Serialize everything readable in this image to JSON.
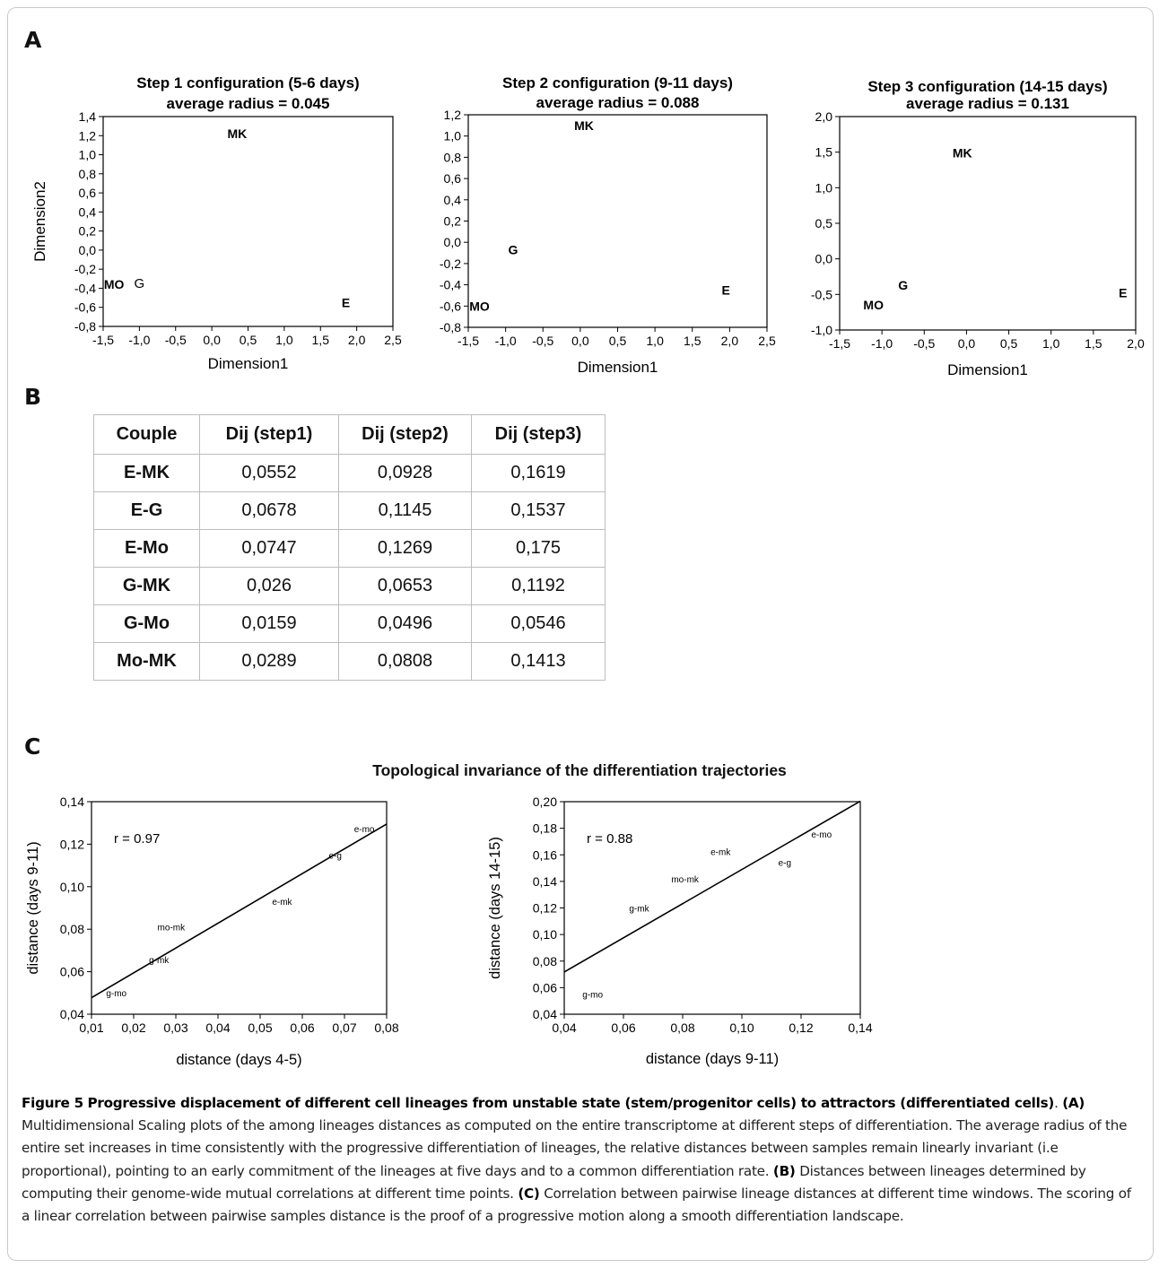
{
  "panels": {
    "a": "A",
    "b": "B",
    "c": "C"
  },
  "chart_data": [
    {
      "type": "scatter",
      "title_line1": "Step 1 configuration (5-6 days)",
      "title_line2": "average radius = 0.045",
      "xlabel": "Dimension1",
      "ylabel": "Dimension2",
      "xlim": [
        -1.5,
        2.5
      ],
      "ylim": [
        -0.8,
        1.4
      ],
      "xticks": [
        "-1,5",
        "-1,0",
        "-0,5",
        "0,0",
        "0,5",
        "1,0",
        "1,5",
        "2,0",
        "2,5"
      ],
      "yticks": [
        "-0,8",
        "-0,6",
        "-0,4",
        "-0,2",
        "0,0",
        "0,2",
        "0,4",
        "0,6",
        "0,8",
        "1,0",
        "1,2",
        "1,4"
      ],
      "points": [
        {
          "label": "MK",
          "x": 0.35,
          "y": 1.22,
          "bold": true
        },
        {
          "label": "MO",
          "x": -1.35,
          "y": -0.36,
          "bold": true
        },
        {
          "label": "G",
          "x": -1.0,
          "y": -0.35,
          "bold": false
        },
        {
          "label": "E",
          "x": 1.85,
          "y": -0.55,
          "bold": true
        }
      ]
    },
    {
      "type": "scatter",
      "title_line1": "Step 2 configuration (9-11 days)",
      "title_line2": "average radius = 0.088",
      "xlabel": "Dimension1",
      "ylabel": "",
      "xlim": [
        -1.5,
        2.5
      ],
      "ylim": [
        -0.8,
        1.2
      ],
      "xticks": [
        "-1,5",
        "-1,0",
        "-0,5",
        "0,0",
        "0,5",
        "1,0",
        "1,5",
        "2,0",
        "2,5"
      ],
      "yticks": [
        "-0,8",
        "-0,6",
        "-0,4",
        "-0,2",
        "0,0",
        "0,2",
        "0,4",
        "0,6",
        "0,8",
        "1,0",
        "1,2"
      ],
      "points": [
        {
          "label": "MK",
          "x": 0.05,
          "y": 1.1,
          "bold": true
        },
        {
          "label": "G",
          "x": -0.9,
          "y": -0.07,
          "bold": true
        },
        {
          "label": "MO",
          "x": -1.35,
          "y": -0.6,
          "bold": true
        },
        {
          "label": "E",
          "x": 1.95,
          "y": -0.45,
          "bold": true
        }
      ]
    },
    {
      "type": "scatter",
      "title_line1": "Step 3 configuration (14-15 days)",
      "title_line2": "average radius = 0.131",
      "xlabel": "Dimension1",
      "ylabel": "",
      "xlim": [
        -1.5,
        2.0
      ],
      "ylim": [
        -1.0,
        2.0
      ],
      "xticks": [
        "-1,5",
        "-1,0",
        "-0,5",
        "0,0",
        "0,5",
        "1,0",
        "1,5",
        "2,0"
      ],
      "yticks": [
        "-1,0",
        "-0,5",
        "0,0",
        "0,5",
        "1,0",
        "1,5",
        "2,0"
      ],
      "points": [
        {
          "label": "MK",
          "x": -0.05,
          "y": 1.49,
          "bold": true
        },
        {
          "label": "G",
          "x": -0.75,
          "y": -0.37,
          "bold": true
        },
        {
          "label": "MO",
          "x": -1.1,
          "y": -0.65,
          "bold": true
        },
        {
          "label": "E",
          "x": 1.85,
          "y": -0.48,
          "bold": true
        }
      ]
    },
    {
      "type": "table",
      "columns": [
        "Couple",
        "Dij (step1)",
        "Dij (step2)",
        "Dij (step3)"
      ],
      "rows": [
        [
          "E-MK",
          "0,0552",
          "0,0928",
          "0,1619"
        ],
        [
          "E-G",
          "0,0678",
          "0,1145",
          "0,1537"
        ],
        [
          "E-Mo",
          "0,0747",
          "0,1269",
          "0,175"
        ],
        [
          "G-MK",
          "0,026",
          "0,0653",
          "0,1192"
        ],
        [
          "G-Mo",
          "0,0159",
          "0,0496",
          "0,0546"
        ],
        [
          "Mo-MK",
          "0,0289",
          "0,0808",
          "0,1413"
        ]
      ]
    },
    {
      "type": "scatter",
      "suptitle": "Topological invariance of the differentiation trajectories",
      "xlabel": "distance (days 4-5)",
      "ylabel": "distance (days 9-11)",
      "xlim": [
        0.01,
        0.08
      ],
      "ylim": [
        0.04,
        0.14
      ],
      "xticks": [
        "0,01",
        "0,02",
        "0,03",
        "0,04",
        "0,05",
        "0,06",
        "0,07",
        "0,08"
      ],
      "yticks": [
        "0,04",
        "0,06",
        "0,08",
        "0,10",
        "0,12",
        "0,14"
      ],
      "annotation": "r = 0.97",
      "fit_line": [
        [
          0.01,
          0.0478
        ],
        [
          0.08,
          0.1295
        ]
      ],
      "points": [
        {
          "label": "g-mo",
          "x": 0.0159,
          "y": 0.0496
        },
        {
          "label": "g-mk",
          "x": 0.026,
          "y": 0.0653
        },
        {
          "label": "mo-mk",
          "x": 0.0289,
          "y": 0.0808
        },
        {
          "label": "e-mk",
          "x": 0.0552,
          "y": 0.0928
        },
        {
          "label": "e-g",
          "x": 0.0678,
          "y": 0.1145
        },
        {
          "label": "e-mo",
          "x": 0.0747,
          "y": 0.1269
        }
      ]
    },
    {
      "type": "scatter",
      "xlabel": "distance (days 9-11)",
      "ylabel": "distance (days 14-15)",
      "xlim": [
        0.04,
        0.14
      ],
      "ylim": [
        0.04,
        0.2
      ],
      "xticks": [
        "0,04",
        "0,06",
        "0,08",
        "0,10",
        "0,12",
        "0,14"
      ],
      "yticks": [
        "0,04",
        "0,06",
        "0,08",
        "0,10",
        "0,12",
        "0,14",
        "0,16",
        "0,18",
        "0,20"
      ],
      "annotation": "r = 0.88",
      "fit_line": [
        [
          0.04,
          0.0718
        ],
        [
          0.14,
          0.2004
        ]
      ],
      "points": [
        {
          "label": "g-mo",
          "x": 0.0496,
          "y": 0.0546
        },
        {
          "label": "g-mk",
          "x": 0.0653,
          "y": 0.1192
        },
        {
          "label": "mo-mk",
          "x": 0.0808,
          "y": 0.1413
        },
        {
          "label": "e-mk",
          "x": 0.0928,
          "y": 0.1619
        },
        {
          "label": "e-g",
          "x": 0.1145,
          "y": 0.1537
        },
        {
          "label": "e-mo",
          "x": 0.1269,
          "y": 0.175
        }
      ]
    }
  ],
  "caption": {
    "heading_label": "Figure 5",
    "heading_text": "Progressive displacement of different cell lineages from unstable state (stem/progenitor cells) to attractors (differentiated cells)",
    "heading_end": ".",
    "a_label": "(A)",
    "a_text": "Multidimensional Scaling plots of the among lineages distances as computed on the entire transcriptome at different steps of differentiation. The average radius of the entire set increases in time consistently with the progressive differentiation of lineages, the relative distances between samples remain linearly invariant (i.e proportional), pointing to an early commitment of the lineages at five days and to a common differentiation rate.",
    "b_label": "(B)",
    "b_text": "Distances between lineages determined by computing their genome-wide mutual correlations at different time points.",
    "c_label": "(C)",
    "c_text": "Correlation between pairwise lineage distances at different time windows. The scoring of a linear correlation between pairwise samples distance is the proof of a progressive motion along a smooth differentiation landscape."
  }
}
